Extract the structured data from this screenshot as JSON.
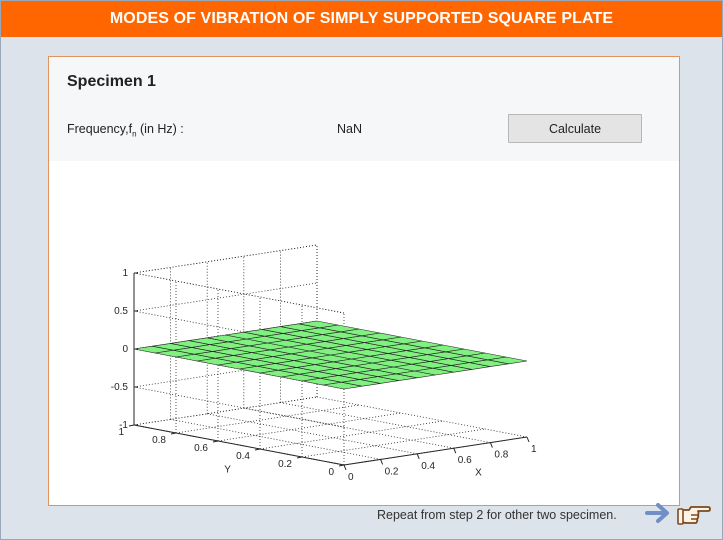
{
  "header": {
    "title": "MODES OF VIBRATION OF SIMPLY SUPPORTED SQUARE PLATE"
  },
  "specimen": {
    "title": "Specimen 1",
    "frequency_label_main": "Frequency,f",
    "frequency_label_sub": "n",
    "frequency_label_unit": " (in Hz) :",
    "frequency_value": "NaN",
    "calculate_label": "Calculate"
  },
  "chart_data": {
    "type": "surface",
    "xlabel": "X",
    "ylabel": "Y",
    "zlabel": "",
    "xlim": [
      0,
      1
    ],
    "ylim": [
      0,
      1
    ],
    "zlim": [
      -1,
      1
    ],
    "x_ticks": [
      "0",
      "0.2",
      "0.4",
      "0.6",
      "0.8",
      "1"
    ],
    "y_ticks": [
      "0",
      "0.2",
      "0.4",
      "0.6",
      "0.8",
      "1"
    ],
    "z_ticks": [
      "-1",
      "-0.5",
      "0",
      "0.5",
      "1"
    ],
    "grid": true,
    "mesh_divisions": 10,
    "surface_value": 0,
    "surface_color": "#80f080",
    "edge_color": "#222222"
  },
  "footer": {
    "instruction": "Repeat from step 2 for other two specimen.",
    "arrow_icon": "arrow-right-icon",
    "hand_icon": "pointing-hand-icon"
  },
  "colors": {
    "header_bg": "#ff6600",
    "page_bg": "#dde3ea",
    "panel_border": "#e1935c",
    "arrow": "#6f8fc6",
    "hand": "#7a4a1f"
  }
}
